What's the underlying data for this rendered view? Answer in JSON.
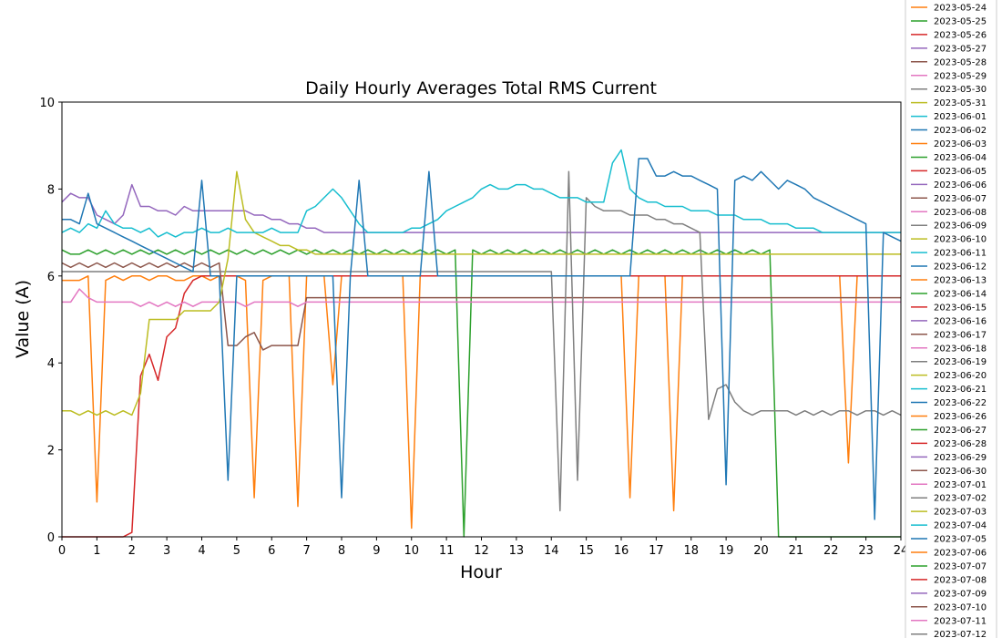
{
  "chart_data": {
    "type": "line",
    "title": "Daily Hourly Averages Total RMS Current",
    "xlabel": "Hour",
    "ylabel": "Value (A)",
    "xlim": [
      0,
      24
    ],
    "ylim": [
      0,
      10
    ],
    "x_ticks": [
      0,
      1,
      2,
      3,
      4,
      5,
      6,
      7,
      8,
      9,
      10,
      11,
      12,
      13,
      14,
      15,
      16,
      17,
      18,
      19,
      20,
      21,
      22,
      23,
      24
    ],
    "y_ticks": [
      0,
      2,
      4,
      6,
      8,
      10
    ],
    "grid": false,
    "legend_position": "right (outside plot, clipped)",
    "palette": [
      "#ff7f0e",
      "#2ca02c",
      "#d62728",
      "#9467bd",
      "#8c564b",
      "#e377c2",
      "#7f7f7f",
      "#bcbd22",
      "#17becf",
      "#1f77b4"
    ],
    "x": [
      0,
      0.25,
      0.5,
      0.75,
      1,
      1.25,
      1.5,
      1.75,
      2,
      2.25,
      2.5,
      2.75,
      3,
      3.25,
      3.5,
      3.75,
      4,
      4.25,
      4.5,
      4.75,
      5,
      5.25,
      5.5,
      5.75,
      6,
      6.25,
      6.5,
      6.75,
      7,
      7.25,
      7.5,
      7.75,
      8,
      8.25,
      8.5,
      8.75,
      9,
      9.25,
      9.5,
      9.75,
      10,
      10.25,
      10.5,
      10.75,
      11,
      11.25,
      11.5,
      11.75,
      12,
      12.25,
      12.5,
      12.75,
      13,
      13.25,
      13.5,
      13.75,
      14,
      14.25,
      14.5,
      14.75,
      15,
      15.25,
      15.5,
      15.75,
      16,
      16.25,
      16.5,
      16.75,
      17,
      17.25,
      17.5,
      17.75,
      18,
      18.25,
      18.5,
      18.75,
      19,
      19.25,
      19.5,
      19.75,
      20,
      20.25,
      20.5,
      20.75,
      21,
      21.25,
      21.5,
      21.75,
      22,
      22.25,
      22.5,
      22.75,
      23,
      23.25,
      23.5,
      23.75,
      24
    ],
    "series": [
      {
        "name": "2023-05-24",
        "values": [
          5.9,
          5.9,
          5.9,
          6.0,
          0.8,
          5.9,
          6.0,
          5.9,
          6.0,
          6.0,
          5.9,
          6.0,
          6.0,
          5.9,
          5.9,
          6.0,
          6.0,
          5.9,
          6.0,
          6.0,
          6.0,
          5.9,
          0.9,
          5.9,
          6.0,
          6.0,
          6.0,
          0.7,
          6.0,
          6.0,
          6.0,
          3.5,
          6.0,
          6.0,
          6.0,
          6.0,
          6.0,
          6.0,
          6.0,
          6.0,
          0.2,
          6.0,
          6.0,
          6.0,
          6.0,
          6.0,
          6.0,
          6.0,
          6.0,
          6.0,
          6.0,
          6.0,
          6.0,
          6.0,
          6.0,
          6.0,
          6.0,
          6.0,
          6.0,
          6.0,
          6.0,
          6.0,
          6.0,
          6.0,
          6.0,
          0.9,
          6.0,
          6.0,
          6.0,
          6.0,
          0.6,
          6.0,
          6.0,
          6.0,
          6.0,
          6.0,
          6.0,
          6.0,
          6.0,
          6.0,
          6.0,
          6.0,
          6.0,
          6.0,
          6.0,
          6.0,
          6.0,
          6.0,
          6.0,
          6.0,
          1.7,
          6.0,
          6.0,
          6.0,
          6.0,
          6.0,
          6.0
        ]
      },
      {
        "name": "2023-05-25",
        "values": [
          6.6,
          6.5,
          6.5,
          6.6,
          6.5,
          6.6,
          6.5,
          6.6,
          6.5,
          6.6,
          6.5,
          6.6,
          6.5,
          6.6,
          6.5,
          6.6,
          6.5,
          6.6,
          6.5,
          6.6,
          6.5,
          6.6,
          6.5,
          6.6,
          6.5,
          6.6,
          6.5,
          6.6,
          6.5,
          6.6,
          6.5,
          6.6,
          6.5,
          6.6,
          6.5,
          6.6,
          6.5,
          6.6,
          6.5,
          6.6,
          6.5,
          6.6,
          6.5,
          6.6,
          6.5,
          6.6,
          0.0,
          6.6,
          6.5,
          6.6,
          6.5,
          6.6,
          6.5,
          6.6,
          6.5,
          6.6,
          6.5,
          6.6,
          6.5,
          6.6,
          6.5,
          6.6,
          6.5,
          6.6,
          6.5,
          6.6,
          6.5,
          6.6,
          6.5,
          6.6,
          6.5,
          6.6,
          6.5,
          6.6,
          6.5,
          6.6,
          6.5,
          6.6,
          6.5,
          6.6,
          6.5,
          6.6,
          0.0,
          0.0,
          0.0,
          0.0,
          0.0,
          0.0,
          0.0,
          0.0,
          0.0,
          0.0,
          0.0,
          0.0,
          0.0,
          0.0,
          0.0
        ]
      },
      {
        "name": "2023-05-26",
        "values": [
          0.0,
          0.0,
          0.0,
          0.0,
          0.0,
          0.0,
          0.0,
          0.0,
          0.1,
          3.7,
          4.2,
          3.6,
          4.6,
          4.8,
          5.6,
          5.9,
          6.0,
          6.0,
          6.0,
          6.0,
          6.0,
          6.0,
          6.0,
          6.0,
          6.0,
          6.0,
          6.0,
          6.0,
          6.0,
          6.0,
          6.0,
          6.0,
          6.0,
          6.0,
          6.0,
          6.0,
          6.0,
          6.0,
          6.0,
          6.0,
          6.0,
          6.0,
          6.0,
          6.0,
          6.0,
          6.0,
          6.0,
          6.0,
          6.0,
          6.0,
          6.0,
          6.0,
          6.0,
          6.0,
          6.0,
          6.0,
          6.0,
          6.0,
          6.0,
          6.0,
          6.0,
          6.0,
          6.0,
          6.0,
          6.0,
          6.0,
          6.0,
          6.0,
          6.0,
          6.0,
          6.0,
          6.0,
          6.0,
          6.0,
          6.0,
          6.0,
          6.0,
          6.0,
          6.0,
          6.0,
          6.0,
          6.0,
          6.0,
          6.0,
          6.0,
          6.0,
          6.0,
          6.0,
          6.0,
          6.0,
          6.0,
          6.0,
          6.0,
          6.0,
          6.0,
          6.0,
          6.0
        ]
      },
      {
        "name": "2023-05-27",
        "values": [
          7.7,
          7.9,
          7.8,
          7.8,
          7.4,
          7.3,
          7.2,
          7.4,
          8.1,
          7.6,
          7.6,
          7.5,
          7.5,
          7.4,
          7.6,
          7.5,
          7.5,
          7.5,
          7.5,
          7.5,
          7.5,
          7.5,
          7.4,
          7.4,
          7.3,
          7.3,
          7.2,
          7.2,
          7.1,
          7.1,
          7.0,
          7.0,
          7.0,
          7.0,
          7.0,
          7.0,
          7.0,
          7.0,
          7.0,
          7.0,
          7.0,
          7.0,
          7.0,
          7.0,
          7.0,
          7.0,
          7.0,
          7.0,
          7.0,
          7.0,
          7.0,
          7.0,
          7.0,
          7.0,
          7.0,
          7.0,
          7.0,
          7.0,
          7.0,
          7.0,
          7.0,
          7.0,
          7.0,
          7.0,
          7.0,
          7.0,
          7.0,
          7.0,
          7.0,
          7.0,
          7.0,
          7.0,
          7.0,
          7.0,
          7.0,
          7.0,
          7.0,
          7.0,
          7.0,
          7.0,
          7.0,
          7.0,
          7.0,
          7.0,
          7.0,
          7.0,
          7.0,
          7.0,
          7.0,
          7.0,
          7.0,
          7.0,
          7.0,
          7.0,
          7.0,
          7.0,
          7.0
        ]
      },
      {
        "name": "2023-05-28",
        "values": [
          6.3,
          6.2,
          6.3,
          6.2,
          6.3,
          6.2,
          6.3,
          6.2,
          6.3,
          6.2,
          6.3,
          6.2,
          6.3,
          6.2,
          6.3,
          6.2,
          6.3,
          6.2,
          6.3,
          4.4,
          4.4,
          4.6,
          4.7,
          4.3,
          4.4,
          4.4,
          4.4,
          4.4,
          5.5,
          5.5,
          5.5,
          5.5,
          5.5,
          5.5,
          5.5,
          5.5,
          5.5,
          5.5,
          5.5,
          5.5,
          5.5,
          5.5,
          5.5,
          5.5,
          5.5,
          5.5,
          5.5,
          5.5,
          5.5,
          5.5,
          5.5,
          5.5,
          5.5,
          5.5,
          5.5,
          5.5,
          5.5,
          5.5,
          5.5,
          5.5,
          5.5,
          5.5,
          5.5,
          5.5,
          5.5,
          5.5,
          5.5,
          5.5,
          5.5,
          5.5,
          5.5,
          5.5,
          5.5,
          5.5,
          5.5,
          5.5,
          5.5,
          5.5,
          5.5,
          5.5,
          5.5,
          5.5,
          5.5,
          5.5,
          5.5,
          5.5,
          5.5,
          5.5,
          5.5,
          5.5,
          5.5,
          5.5,
          5.5,
          5.5,
          5.5,
          5.5,
          5.5
        ]
      },
      {
        "name": "2023-05-29",
        "values": [
          5.4,
          5.4,
          5.7,
          5.5,
          5.4,
          5.4,
          5.4,
          5.4,
          5.4,
          5.3,
          5.4,
          5.3,
          5.4,
          5.3,
          5.4,
          5.3,
          5.4,
          5.4,
          5.4,
          5.4,
          5.4,
          5.3,
          5.4,
          5.4,
          5.4,
          5.4,
          5.4,
          5.3,
          5.4,
          5.4,
          5.4,
          5.4,
          5.4,
          5.4,
          5.4,
          5.4,
          5.4,
          5.4,
          5.4,
          5.4,
          5.4,
          5.4,
          5.4,
          5.4,
          5.4,
          5.4,
          5.4,
          5.4,
          5.4,
          5.4,
          5.4,
          5.4,
          5.4,
          5.4,
          5.4,
          5.4,
          5.4,
          5.4,
          5.4,
          5.4,
          5.4,
          5.4,
          5.4,
          5.4,
          5.4,
          5.4,
          5.4,
          5.4,
          5.4,
          5.4,
          5.4,
          5.4,
          5.4,
          5.4,
          5.4,
          5.4,
          5.4,
          5.4,
          5.4,
          5.4,
          5.4,
          5.4,
          5.4,
          5.4,
          5.4,
          5.4,
          5.4,
          5.4,
          5.4,
          5.4,
          5.4,
          5.4,
          5.4,
          5.4,
          5.4,
          5.4,
          5.4
        ]
      },
      {
        "name": "2023-05-30",
        "values": [
          6.1,
          6.1,
          6.1,
          6.1,
          6.1,
          6.1,
          6.1,
          6.1,
          6.1,
          6.1,
          6.1,
          6.1,
          6.1,
          6.1,
          6.1,
          6.1,
          6.1,
          6.1,
          6.1,
          6.1,
          6.1,
          6.1,
          6.1,
          6.1,
          6.1,
          6.1,
          6.1,
          6.1,
          6.1,
          6.1,
          6.1,
          6.1,
          6.1,
          6.1,
          6.1,
          6.1,
          6.1,
          6.1,
          6.1,
          6.1,
          6.1,
          6.1,
          6.1,
          6.1,
          6.1,
          6.1,
          6.1,
          6.1,
          6.1,
          6.1,
          6.1,
          6.1,
          6.1,
          6.1,
          6.1,
          6.1,
          6.1,
          0.6,
          8.4,
          1.3,
          7.8,
          7.6,
          7.5,
          7.5,
          7.5,
          7.4,
          7.4,
          7.4,
          7.3,
          7.3,
          7.2,
          7.2,
          7.1,
          7.0,
          2.7,
          3.4,
          3.5,
          3.1,
          2.9,
          2.8,
          2.9,
          2.9,
          2.9,
          2.9,
          2.8,
          2.9,
          2.8,
          2.9,
          2.8,
          2.9,
          2.9,
          2.8,
          2.9,
          2.9,
          2.8,
          2.9,
          2.8
        ]
      },
      {
        "name": "2023-05-31",
        "values": [
          2.9,
          2.9,
          2.8,
          2.9,
          2.8,
          2.9,
          2.8,
          2.9,
          2.8,
          3.3,
          5.0,
          5.0,
          5.0,
          5.0,
          5.2,
          5.2,
          5.2,
          5.2,
          5.4,
          6.4,
          8.4,
          7.3,
          7.0,
          6.9,
          6.8,
          6.7,
          6.7,
          6.6,
          6.6,
          6.5,
          6.5,
          6.5,
          6.5,
          6.5,
          6.5,
          6.5,
          6.5,
          6.5,
          6.5,
          6.5,
          6.5,
          6.5,
          6.5,
          6.5,
          6.5,
          6.5,
          6.5,
          6.5,
          6.5,
          6.5,
          6.5,
          6.5,
          6.5,
          6.5,
          6.5,
          6.5,
          6.5,
          6.5,
          6.5,
          6.5,
          6.5,
          6.5,
          6.5,
          6.5,
          6.5,
          6.5,
          6.5,
          6.5,
          6.5,
          6.5,
          6.5,
          6.5,
          6.5,
          6.5,
          6.5,
          6.5,
          6.5,
          6.5,
          6.5,
          6.5,
          6.5,
          6.5,
          6.5,
          6.5,
          6.5,
          6.5,
          6.5,
          6.5,
          6.5,
          6.5,
          6.5,
          6.5,
          6.5,
          6.5,
          6.5,
          6.5,
          6.5
        ]
      },
      {
        "name": "2023-06-01",
        "values": [
          7.0,
          7.1,
          7.0,
          7.2,
          7.1,
          7.5,
          7.2,
          7.1,
          7.1,
          7.0,
          7.1,
          6.9,
          7.0,
          6.9,
          7.0,
          7.0,
          7.1,
          7.0,
          7.0,
          7.1,
          7.0,
          7.0,
          7.0,
          7.0,
          7.1,
          7.0,
          7.0,
          7.0,
          7.5,
          7.6,
          7.8,
          8.0,
          7.8,
          7.5,
          7.2,
          7.0,
          7.0,
          7.0,
          7.0,
          7.0,
          7.1,
          7.1,
          7.2,
          7.3,
          7.5,
          7.6,
          7.7,
          7.8,
          8.0,
          8.1,
          8.0,
          8.0,
          8.1,
          8.1,
          8.0,
          8.0,
          7.9,
          7.8,
          7.8,
          7.8,
          7.7,
          7.7,
          7.7,
          8.6,
          8.9,
          8.0,
          7.8,
          7.7,
          7.7,
          7.6,
          7.6,
          7.6,
          7.5,
          7.5,
          7.5,
          7.4,
          7.4,
          7.4,
          7.3,
          7.3,
          7.3,
          7.2,
          7.2,
          7.2,
          7.1,
          7.1,
          7.1,
          7.0,
          7.0,
          7.0,
          7.0,
          7.0,
          7.0,
          7.0,
          7.0,
          7.0,
          7.0
        ]
      },
      {
        "name": "2023-06-02",
        "values": [
          7.3,
          7.3,
          7.2,
          7.9,
          7.2,
          7.1,
          7.0,
          6.9,
          6.8,
          6.7,
          6.6,
          6.5,
          6.4,
          6.3,
          6.2,
          6.1,
          8.2,
          6.0,
          6.0,
          1.3,
          6.0,
          6.0,
          6.0,
          6.0,
          6.0,
          6.0,
          6.0,
          6.0,
          6.0,
          6.0,
          6.0,
          6.0,
          0.9,
          6.0,
          8.2,
          6.0,
          6.0,
          6.0,
          6.0,
          6.0,
          6.0,
          6.0,
          8.4,
          6.0,
          6.0,
          6.0,
          6.0,
          6.0,
          6.0,
          6.0,
          6.0,
          6.0,
          6.0,
          6.0,
          6.0,
          6.0,
          6.0,
          6.0,
          6.0,
          6.0,
          6.0,
          6.0,
          6.0,
          6.0,
          6.0,
          6.0,
          8.7,
          8.7,
          8.3,
          8.3,
          8.4,
          8.3,
          8.3,
          8.2,
          8.1,
          8.0,
          1.2,
          8.2,
          8.3,
          8.2,
          8.4,
          8.2,
          8.0,
          8.2,
          8.1,
          8.0,
          7.8,
          7.7,
          7.6,
          7.5,
          7.4,
          7.3,
          7.2,
          0.4,
          7.0,
          6.9,
          6.8
        ]
      }
    ],
    "legend_entries": [
      "2023-05-24",
      "2023-05-25",
      "2023-05-26",
      "2023-05-27",
      "2023-05-28",
      "2023-05-29",
      "2023-05-30",
      "2023-05-31",
      "2023-06-01",
      "2023-06-02",
      "2023-06-03",
      "2023-06-04",
      "2023-06-05",
      "2023-06-06",
      "2023-06-07",
      "2023-06-08",
      "2023-06-09",
      "2023-06-10",
      "2023-06-11",
      "2023-06-12",
      "2023-06-13",
      "2023-06-14",
      "2023-06-15",
      "2023-06-16",
      "2023-06-17",
      "2023-06-18",
      "2023-06-19",
      "2023-06-20",
      "2023-06-21",
      "2023-06-22",
      "2023-06-26",
      "2023-06-27",
      "2023-06-28",
      "2023-06-29",
      "2023-06-30",
      "2023-07-01",
      "2023-07-02",
      "2023-07-03",
      "2023-07-04",
      "2023-07-05",
      "2023-07-06",
      "2023-07-07",
      "2023-07-08",
      "2023-07-09",
      "2023-07-10",
      "2023-07-11",
      "2023-07-12"
    ]
  }
}
